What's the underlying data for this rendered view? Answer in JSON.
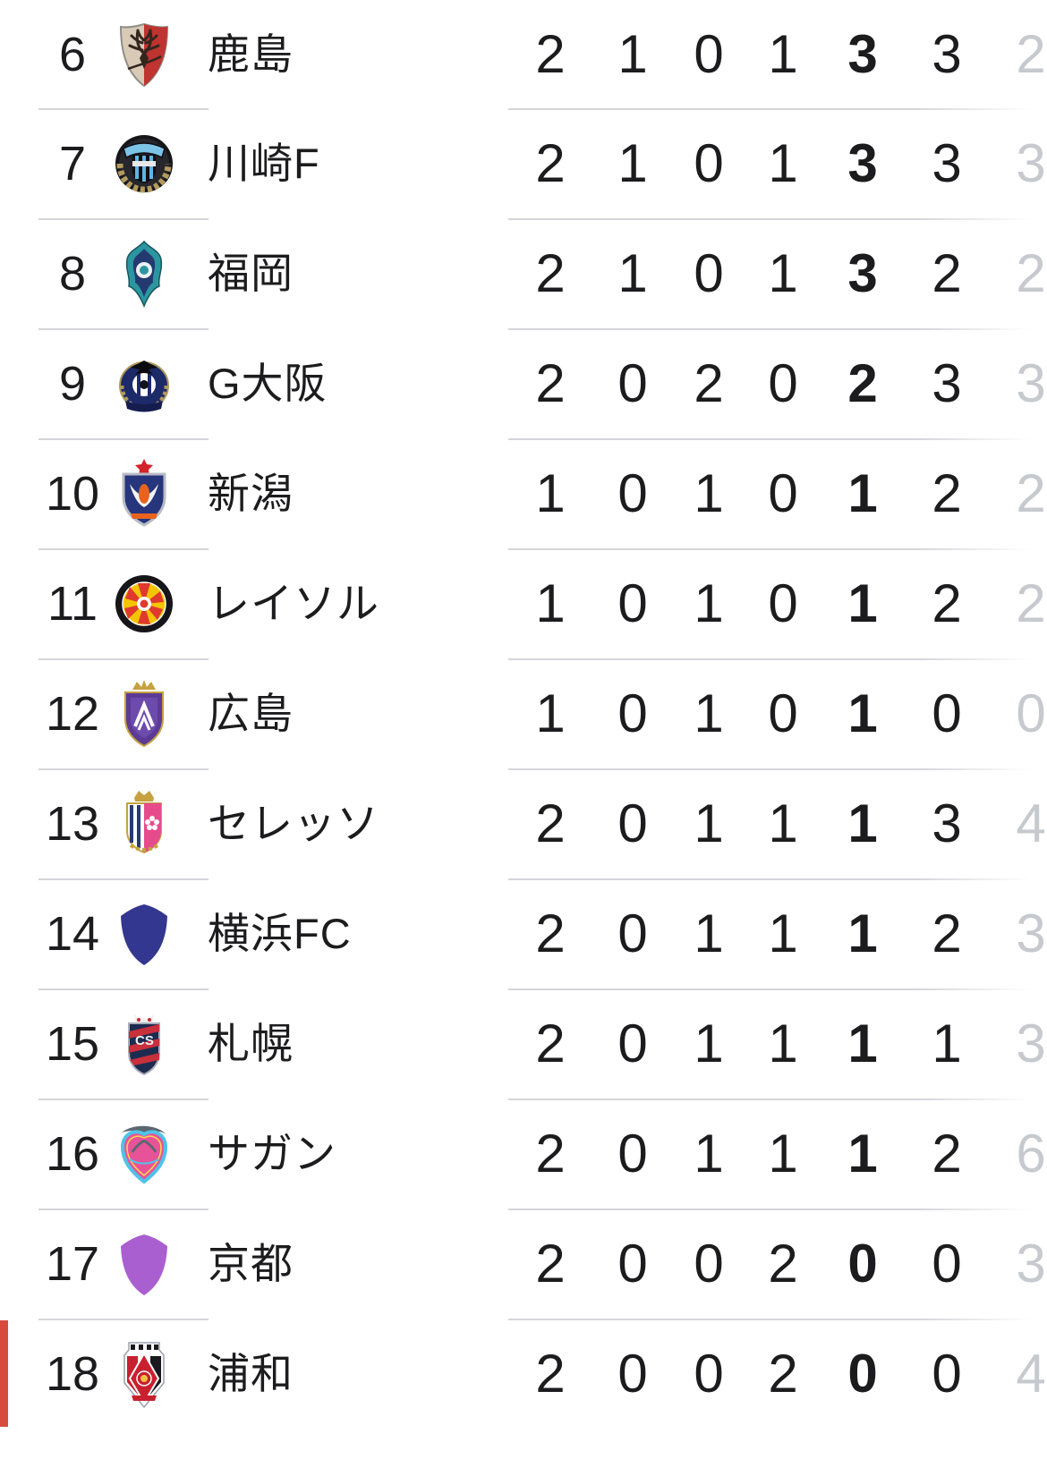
{
  "table": {
    "kind": "league-standings",
    "text_color": "#1c1c1e",
    "faded_text_color": "#c6c9ce",
    "separator_color": "#d5d5da",
    "relegation_marker_color": "#d74b3f",
    "stat_keys": [
      "played",
      "won",
      "drawn",
      "lost",
      "points",
      "goals-for",
      "goals-against"
    ],
    "rows": [
      {
        "rank": "6",
        "team": "鹿島",
        "crest": {
          "name": "kashima-antlers-crest",
          "type": "kashima",
          "colors": [
            "#d8cab6",
            "#bf3430",
            "#33261f",
            "#8f8f89"
          ]
        },
        "stats": [
          "2",
          "1",
          "0",
          "1",
          "3",
          "3",
          "2"
        ],
        "relegation": false
      },
      {
        "rank": "7",
        "team": "川崎F",
        "crest": {
          "name": "kawasaki-frontale-crest",
          "type": "kawasaki",
          "colors": [
            "#15151a",
            "#7cc3e8",
            "#b39a5d",
            "#5fb5e5"
          ]
        },
        "stats": [
          "2",
          "1",
          "0",
          "1",
          "3",
          "3",
          "3"
        ],
        "relegation": false
      },
      {
        "rank": "8",
        "team": "福岡",
        "crest": {
          "name": "avispa-fukuoka-crest",
          "type": "fukuoka",
          "colors": [
            "#2c96a0",
            "#223a70",
            "#eef0f2"
          ]
        },
        "stats": [
          "2",
          "1",
          "0",
          "1",
          "3",
          "2",
          "2"
        ],
        "relegation": false
      },
      {
        "rank": "9",
        "team": "G大阪",
        "crest": {
          "name": "gamba-osaka-crest",
          "type": "gosaka",
          "colors": [
            "#1d2a69",
            "#b09a5a",
            "#0c0c10",
            "#ffffff"
          ]
        },
        "stats": [
          "2",
          "0",
          "2",
          "0",
          "2",
          "3",
          "3"
        ],
        "relegation": false
      },
      {
        "rank": "10",
        "team": "新潟",
        "crest": {
          "name": "albirex-niigata-crest",
          "type": "niigata",
          "colors": [
            "#27357c",
            "#d2232a",
            "#f2f3f5",
            "#e8641e",
            "#b9bcc4"
          ]
        },
        "stats": [
          "1",
          "0",
          "1",
          "0",
          "1",
          "2",
          "2"
        ],
        "relegation": false
      },
      {
        "rank": "11",
        "team": "レイソル",
        "crest": {
          "name": "kashiwa-reysol-crest",
          "type": "reysol",
          "colors": [
            "#16161a",
            "#f5c400",
            "#e03a2f",
            "#ffffff"
          ]
        },
        "stats": [
          "1",
          "0",
          "1",
          "0",
          "1",
          "2",
          "2"
        ],
        "relegation": false
      },
      {
        "rank": "12",
        "team": "広島",
        "crest": {
          "name": "sanfrecce-hiroshima-crest",
          "type": "hiroshima",
          "colors": [
            "#5c3a96",
            "#c5a13f",
            "#6d4bac",
            "#ffffff"
          ]
        },
        "stats": [
          "1",
          "0",
          "1",
          "0",
          "1",
          "0",
          "0"
        ],
        "relegation": false
      },
      {
        "rank": "13",
        "team": "セレッソ",
        "crest": {
          "name": "cerezo-osaka-crest",
          "type": "cerezo",
          "colors": [
            "#ffffff",
            "#273a72",
            "#e64b8c",
            "#c5a13f"
          ]
        },
        "stats": [
          "2",
          "0",
          "1",
          "1",
          "1",
          "3",
          "4"
        ],
        "relegation": false
      },
      {
        "rank": "14",
        "team": "横浜FC",
        "crest": {
          "name": "yokohama-fc-crest",
          "type": "plainshield",
          "colors": [
            "#34378f"
          ]
        },
        "stats": [
          "2",
          "0",
          "1",
          "1",
          "1",
          "2",
          "3"
        ],
        "relegation": false
      },
      {
        "rank": "15",
        "team": "札幌",
        "crest": {
          "name": "consadole-sapporo-crest",
          "type": "sapporo",
          "colors": [
            "#1c2c50",
            "#c8303c",
            "#eef0f2",
            "#d2232a"
          ]
        },
        "stats": [
          "2",
          "0",
          "1",
          "1",
          "1",
          "1",
          "3"
        ],
        "relegation": false
      },
      {
        "rank": "16",
        "team": "サガン",
        "crest": {
          "name": "sagan-tosu-crest",
          "type": "sagan",
          "colors": [
            "#e85298",
            "#4fc3e8",
            "#5b6770",
            "#ffd84d"
          ]
        },
        "stats": [
          "2",
          "0",
          "1",
          "1",
          "1",
          "2",
          "6"
        ],
        "relegation": false
      },
      {
        "rank": "17",
        "team": "京都",
        "crest": {
          "name": "kyoto-sanga-crest",
          "type": "plainshield",
          "colors": [
            "#a95fd0"
          ]
        },
        "stats": [
          "2",
          "0",
          "0",
          "2",
          "0",
          "0",
          "3"
        ],
        "relegation": false
      },
      {
        "rank": "18",
        "team": "浦和",
        "crest": {
          "name": "urawa-reds-crest",
          "type": "urawa",
          "colors": [
            "#ffffff",
            "#c8202f",
            "#1a1a1e",
            "#f0c040",
            "#9aa0a8"
          ]
        },
        "stats": [
          "2",
          "0",
          "0",
          "2",
          "0",
          "0",
          "4"
        ],
        "relegation": true
      }
    ]
  }
}
